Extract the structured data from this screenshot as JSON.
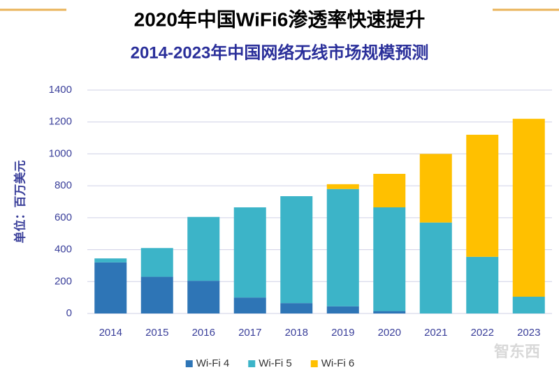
{
  "chart_data": {
    "type": "stacked_bar",
    "title": "2020年中国WiFi6渗透率快速提升",
    "subtitle": "2014-2023年中国网络无线市场规模预测",
    "y_label": "单位：百万美元",
    "categories": [
      "2014",
      "2015",
      "2016",
      "2017",
      "2018",
      "2019",
      "2020",
      "2021",
      "2022",
      "2023"
    ],
    "series": [
      {
        "name": "Wi-Fi 4",
        "color": "#2e75b6",
        "values": [
          320,
          230,
          205,
          100,
          65,
          45,
          15,
          0,
          0,
          0
        ]
      },
      {
        "name": "Wi-Fi 5",
        "color": "#3cb4c8",
        "values": [
          25,
          180,
          400,
          565,
          670,
          735,
          650,
          570,
          355,
          105
        ]
      },
      {
        "name": "Wi-Fi 6",
        "color": "#ffc000",
        "values": [
          0,
          0,
          0,
          0,
          0,
          30,
          210,
          430,
          765,
          1115
        ]
      }
    ],
    "ylim": [
      0,
      1400
    ],
    "yticks": [
      0,
      200,
      400,
      600,
      800,
      1000,
      1200,
      1400
    ],
    "grid": true,
    "legend": "bottom",
    "watermark": "智东西"
  }
}
